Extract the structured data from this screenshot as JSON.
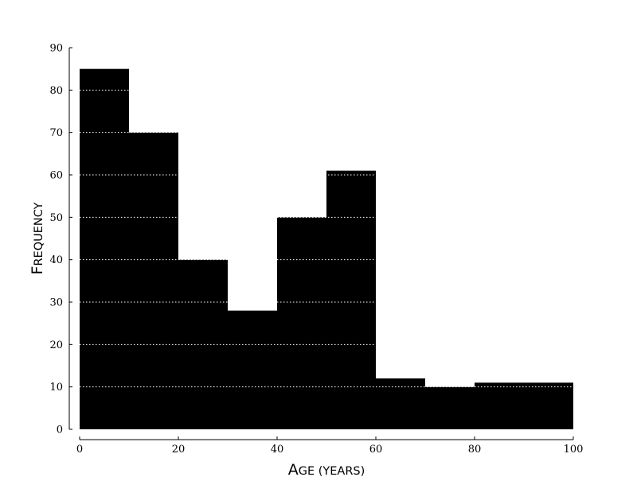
{
  "chart_data": {
    "type": "histogram",
    "title": "",
    "xlabel": {
      "text": "Age (years)",
      "display": [
        {
          "text": "A",
          "big": true
        },
        {
          "text": "GE (YEARS)",
          "big": false
        }
      ]
    },
    "ylabel": {
      "text": "Frequency",
      "display": [
        {
          "text": "F",
          "big": true
        },
        {
          "text": "REQUENCY",
          "big": false
        }
      ]
    },
    "xlim": [
      0,
      100
    ],
    "ylim": [
      0,
      90
    ],
    "x_ticks": [
      0,
      20,
      40,
      60,
      80,
      100
    ],
    "x_tick_labels": [
      "0",
      "20",
      "40",
      "60",
      "80",
      "100"
    ],
    "y_ticks": [
      0,
      10,
      20,
      30,
      40,
      50,
      60,
      70,
      80,
      90
    ],
    "y_tick_labels": [
      "0",
      "10",
      "20",
      "30",
      "40",
      "50",
      "60",
      "70",
      "80",
      "90"
    ],
    "bin_edges": [
      0,
      10,
      20,
      30,
      40,
      50,
      60,
      70,
      80,
      90,
      100
    ],
    "values": [
      85,
      70,
      40,
      28,
      50,
      61,
      12,
      10,
      11,
      11
    ],
    "bar_color": "#000000",
    "grid": {
      "axis": "y",
      "style": "dotted",
      "color": "#ffffff"
    }
  }
}
